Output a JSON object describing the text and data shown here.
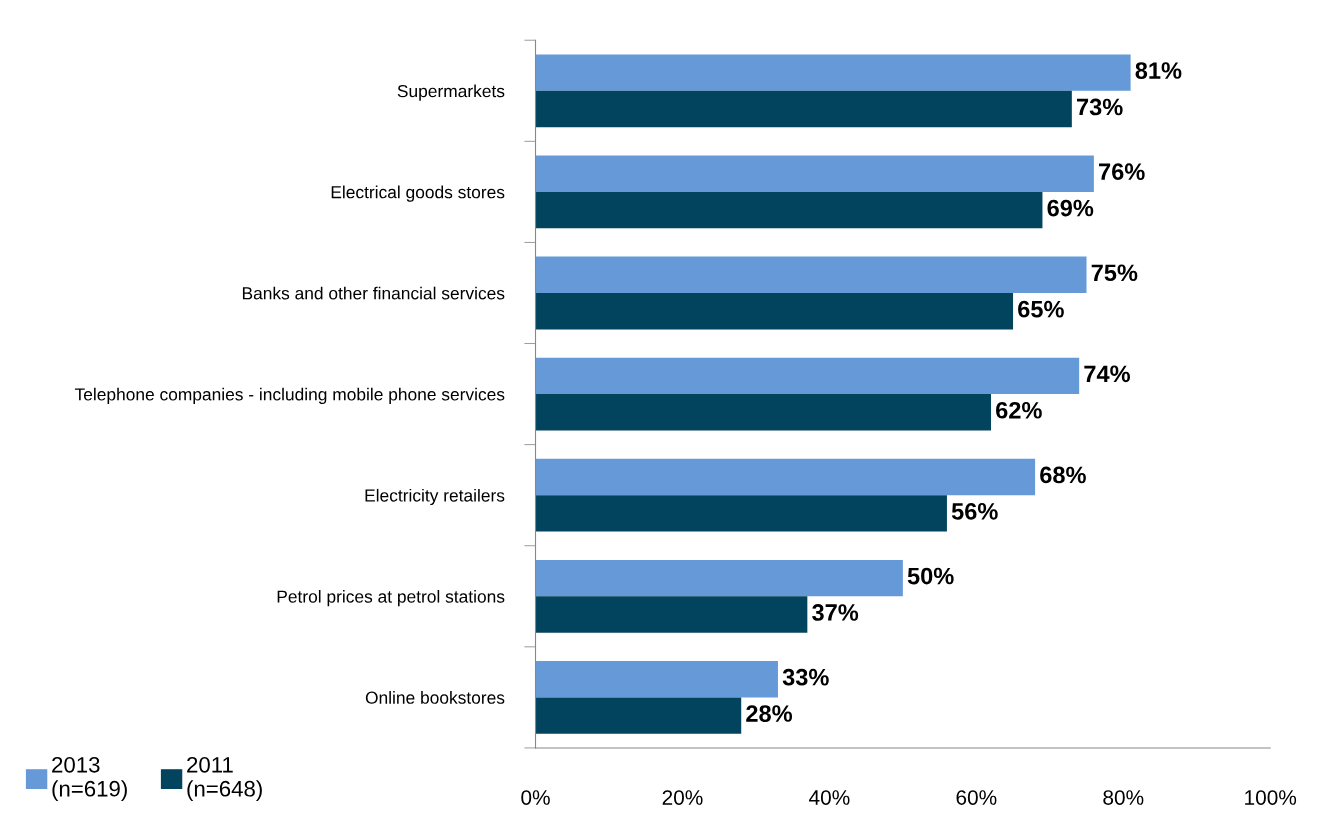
{
  "chart_data": {
    "type": "bar",
    "orientation": "horizontal",
    "categories": [
      "Supermarkets",
      "Electrical goods stores",
      "Banks and other financial services",
      "Telephone companies - including mobile phone services",
      "Electricity retailers",
      "Petrol prices at petrol stations",
      "Online bookstores"
    ],
    "series": [
      {
        "name": "2013\n(n=619)",
        "color": "#6699d8",
        "values": [
          81,
          76,
          75,
          74,
          68,
          50,
          33
        ],
        "value_labels": [
          "81%",
          "76%",
          "75%",
          "74%",
          "68%",
          "50%",
          "33%"
        ]
      },
      {
        "name": "2011\n(n=648)",
        "color": "#02435e",
        "values": [
          73,
          69,
          65,
          62,
          56,
          37,
          28
        ],
        "value_labels": [
          "73%",
          "69%",
          "65%",
          "62%",
          "56%",
          "37%",
          "28%"
        ]
      }
    ],
    "xlim": [
      0,
      100
    ],
    "xticks": [
      {
        "value": 0,
        "label": "0%"
      },
      {
        "value": 20,
        "label": "20%"
      },
      {
        "value": 40,
        "label": "40%"
      },
      {
        "value": 60,
        "label": "60%"
      },
      {
        "value": 80,
        "label": "80%"
      },
      {
        "value": 100,
        "label": "100%"
      }
    ],
    "grid": false,
    "legend": "bottom left"
  }
}
